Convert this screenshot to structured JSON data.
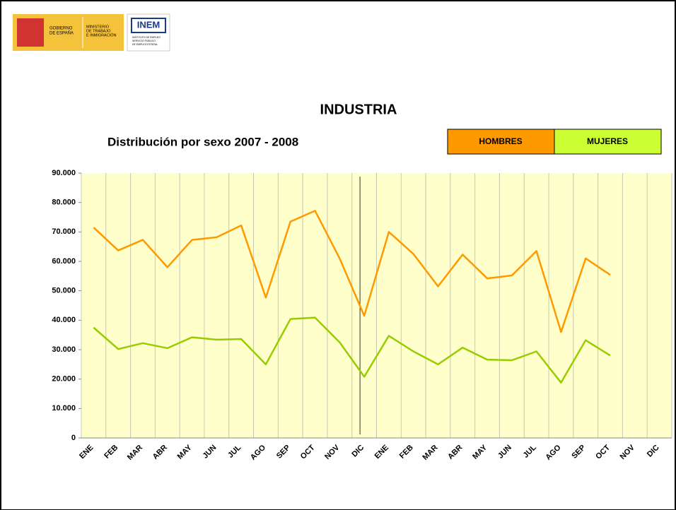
{
  "logo": {
    "gobierno": [
      "GOBIERNO",
      "DE ESPAÑA"
    ],
    "ministerio": [
      "MINISTERIO",
      "DE TRABAJO",
      "E INMIGRACIÓN"
    ],
    "inem": "INEM",
    "inem_sub": [
      "INSTITUTO DE EMPLEO",
      "SERVICIO PÚBLICO",
      "DE EMPLEO ESTATAL"
    ]
  },
  "chart_data": {
    "type": "line",
    "title": "INDUSTRIA",
    "subtitle": "Distribución por sexo 2007 - 2008",
    "categories": [
      "ENE",
      "FEB",
      "MAR",
      "ABR",
      "MAY",
      "JUN",
      "JUL",
      "AGO",
      "SEP",
      "OCT",
      "NOV",
      "DIC",
      "ENE",
      "FEB",
      "MAR",
      "ABR",
      "MAY",
      "JUN",
      "JUL",
      "AGO",
      "SEP",
      "OCT",
      "NOV",
      "DIC"
    ],
    "series": [
      {
        "name": "HOMBRES",
        "color": "#ff9900",
        "values": [
          71500,
          63700,
          67300,
          58000,
          67300,
          68200,
          72200,
          47700,
          73500,
          77200,
          61000,
          41500,
          70000,
          62500,
          51500,
          62300,
          54200,
          55200,
          63500,
          36000,
          61000,
          55400,
          null,
          null
        ]
      },
      {
        "name": "MUJERES",
        "color": "#99cc00",
        "legend_color": "#ccff33",
        "values": [
          37500,
          30200,
          32200,
          30500,
          34200,
          33400,
          33600,
          25000,
          40400,
          40900,
          32500,
          20800,
          34700,
          29400,
          25000,
          30700,
          26600,
          26400,
          29400,
          18800,
          33200,
          28000,
          null,
          null
        ]
      }
    ],
    "ylim": [
      0,
      90000
    ],
    "yticks": [
      0,
      {
        "value": 10000,
        "label": "10.000"
      },
      {
        "value": 20000,
        "label": "20.000"
      },
      {
        "value": 30000,
        "label": "30.000"
      },
      {
        "value": 40000,
        "label": "40.000"
      },
      {
        "value": 50000,
        "label": "50.000"
      },
      {
        "value": 60000,
        "label": "60.000"
      },
      {
        "value": 70000,
        "label": "70.000"
      },
      {
        "value": 80000,
        "label": "80.000"
      },
      {
        "value": 90000,
        "label": "90.000"
      }
    ],
    "grid": true,
    "plot_background": "#ffffcc"
  }
}
